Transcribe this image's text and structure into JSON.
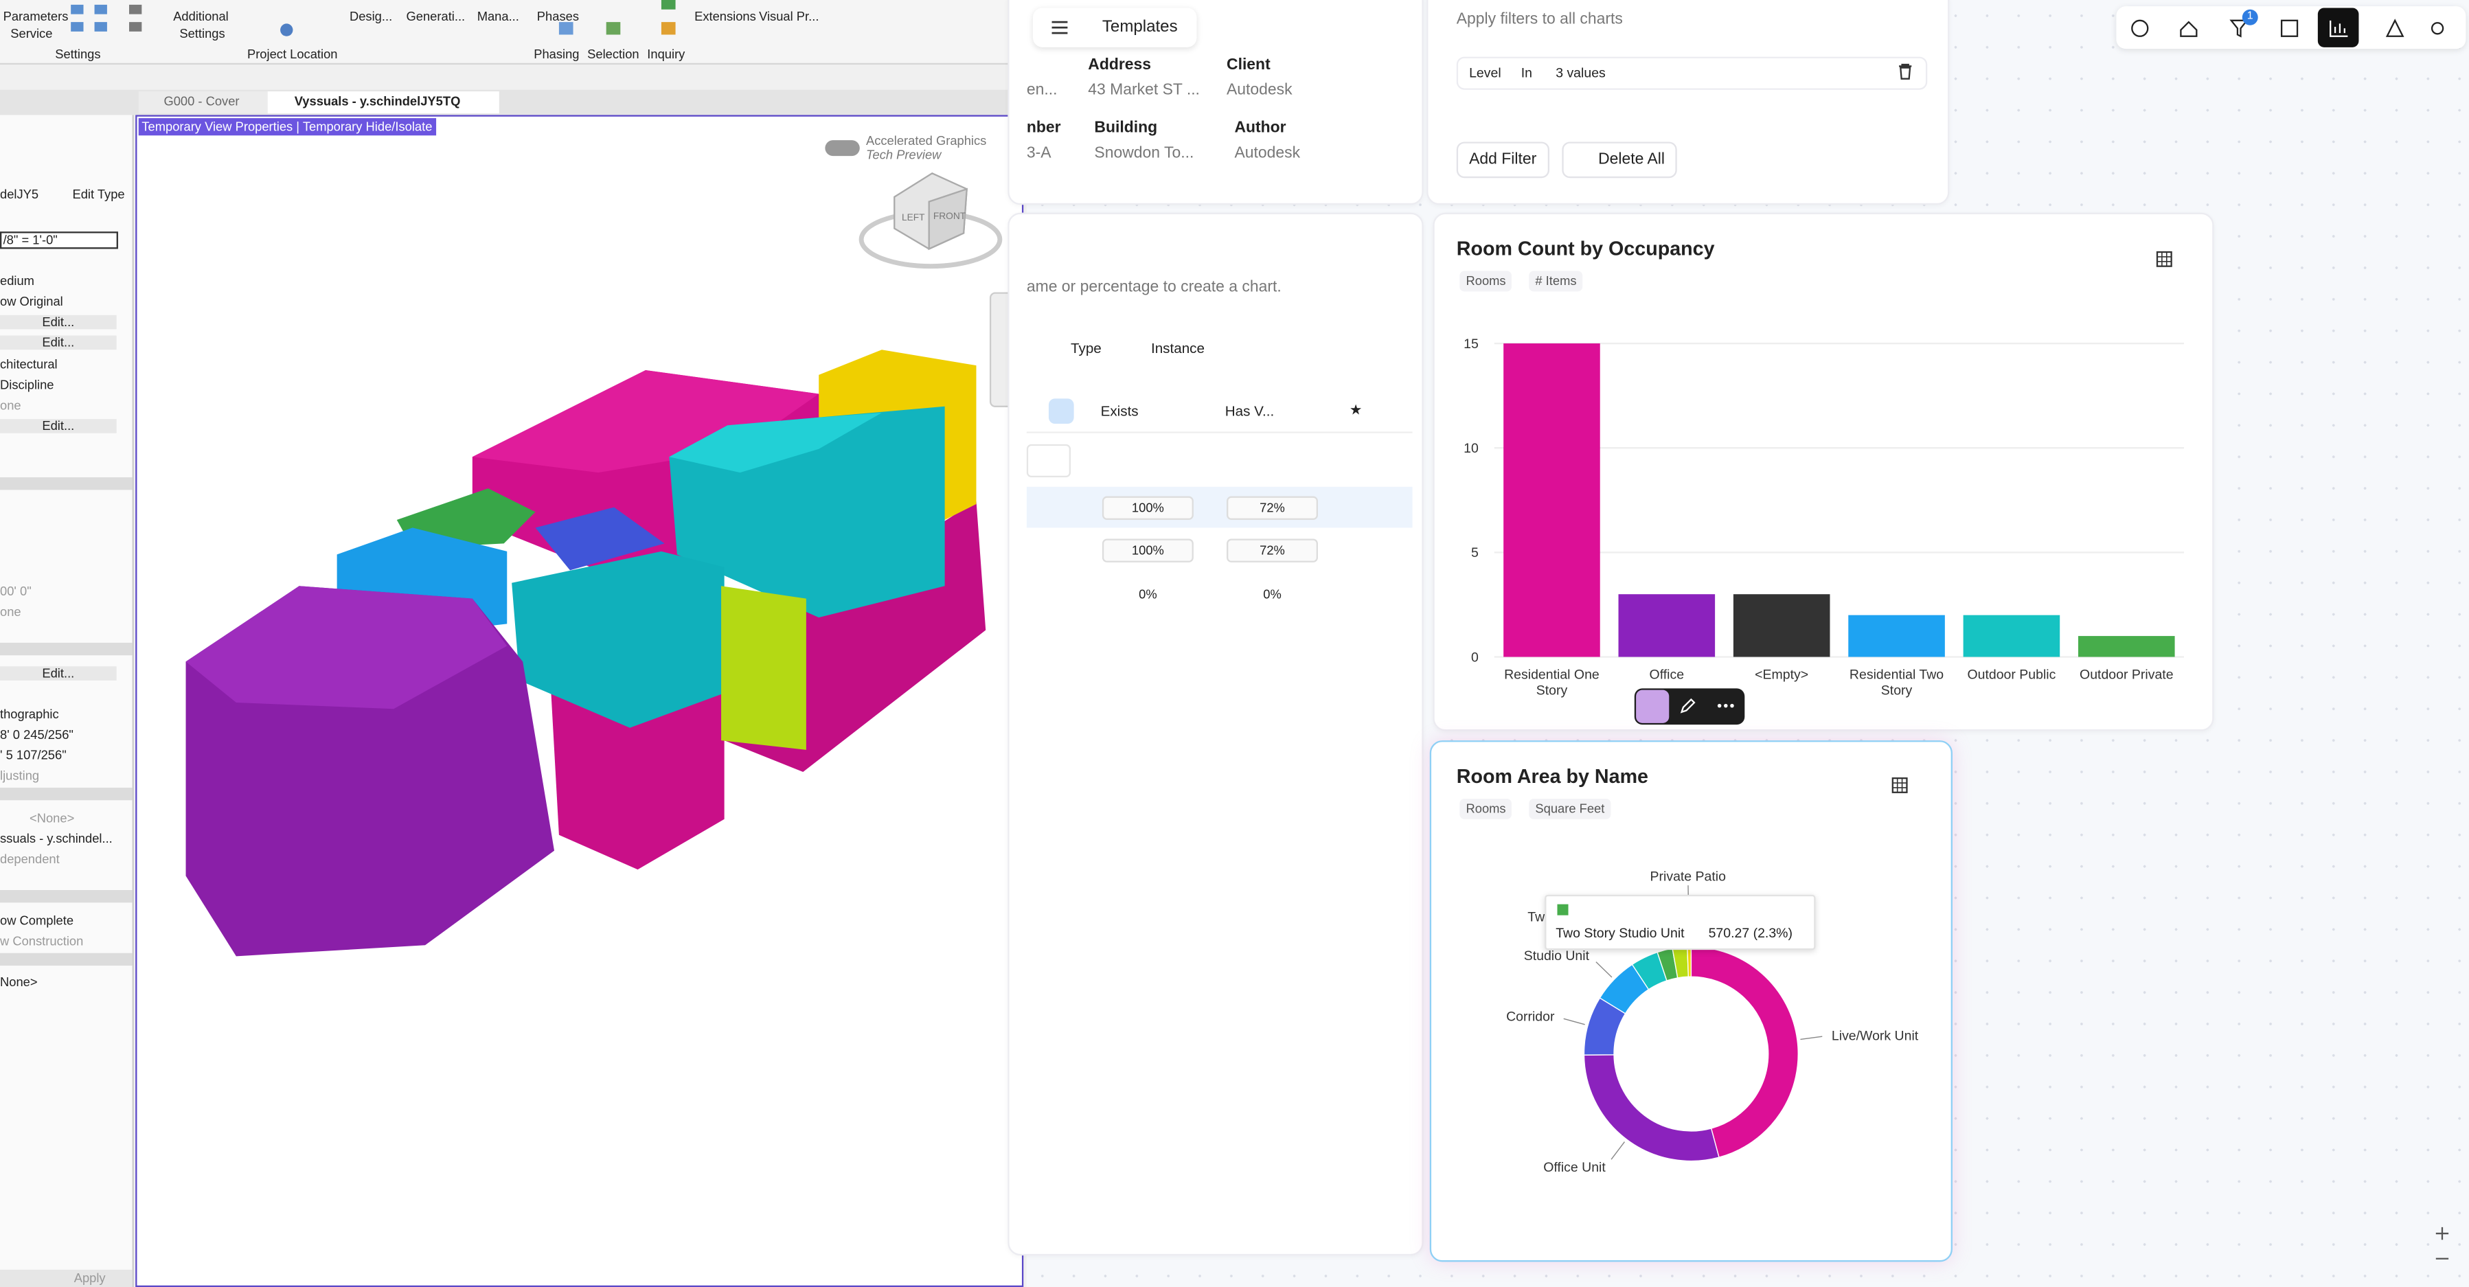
{
  "revit": {
    "ribbon_labels": [
      "Parameters",
      "Service",
      "Additional",
      "Settings",
      "Desig...",
      "Generati...",
      "Mana...",
      "Phases",
      "Extensions",
      "Visual Pr...",
      "Settings",
      "Project Location",
      "Phasing",
      "Selection",
      "Inquiry"
    ],
    "tabs": [
      "G000 - Cover",
      "Vyssuals - y.schindelJY5TQ"
    ],
    "properties": {
      "type_selector": "delJY5",
      "edit_type": "Edit Type",
      "rows": [
        "/8\" = 1'-0\"",
        "edium",
        "ow Original",
        "Edit...",
        "Edit...",
        "chitectural",
        "Discipline",
        "one",
        "Edit...",
        "00' 0\"",
        "one",
        "Edit...",
        "thographic",
        "8'  0 245/256\"",
        "'  5 107/256\"",
        "ljusting",
        "<None>",
        "ssuals - y.schindel...",
        "dependent",
        "ow Complete",
        "w Construction",
        "None>"
      ],
      "apply": "Apply"
    },
    "view": {
      "banner": "Temporary View Properties | Temporary Hide/Isolate",
      "graphics_toggle": "Accelerated Graphics",
      "graphics_sub": "Tech Preview",
      "viewcube": [
        "LEFT",
        "FRONT"
      ]
    }
  },
  "app": {
    "menu_title": "Templates",
    "filter_badge": "1",
    "project_fields": [
      {
        "label": "Address",
        "value": "43 Market ST ..."
      },
      {
        "label": "Client",
        "value": "Autodesk"
      },
      {
        "label": "nber",
        "value": "3-A"
      },
      {
        "label": "Building",
        "value": "Snowdon To..."
      },
      {
        "label": "Author",
        "value": "Autodesk"
      }
    ],
    "project_partial": "en...",
    "filters": {
      "hint": "Apply filters to all charts",
      "field": "Level",
      "operator": "In",
      "values": "3 values",
      "add": "Add Filter",
      "delete": "Delete All"
    },
    "table": {
      "hint": "ame or percentage to create a chart.",
      "tabs": [
        "Type",
        "Instance"
      ],
      "headers": [
        "Exists",
        "Has V..."
      ],
      "rows": [
        [
          "100%",
          "72%"
        ],
        [
          "100%",
          "72%"
        ],
        [
          "0%",
          "0%"
        ]
      ]
    }
  },
  "chart_data": [
    {
      "type": "bar",
      "title": "Room Count by Occupancy",
      "tags": [
        "Rooms",
        "# Items"
      ],
      "categories": [
        "Residential One Story",
        "Office",
        "<Empty>",
        "Residential Two Story",
        "Outdoor Public",
        "Outdoor Private"
      ],
      "values": [
        15,
        3,
        3,
        2,
        2,
        1
      ],
      "colors": [
        "#dc0f96",
        "#8b22bd",
        "#333333",
        "#1ea3f2",
        "#16c3c2",
        "#47ad4b"
      ],
      "ylim": [
        0,
        15
      ],
      "yticks": [
        0,
        5,
        10,
        15
      ],
      "grid": true
    },
    {
      "type": "pie",
      "title": "Room Area by Name",
      "tags": [
        "Rooms",
        "Square Feet"
      ],
      "categories": [
        "Live/Work Unit",
        "Office Unit",
        "Corridor",
        "Studio Unit",
        null,
        "Two Story Studio Unit",
        null,
        "Private Patio"
      ],
      "values": [
        11300,
        7160,
        2200,
        1720,
        1030,
        570.27,
        550,
        140
      ],
      "colors": [
        "#dc0f96",
        "#8b22bd",
        "#4a5fe0",
        "#1ea3f2",
        "#16c3c2",
        "#47ad4b",
        "#b8dd16",
        "#f1d40a"
      ],
      "donut": true,
      "tooltip": "570.27 (2.3%)"
    }
  ]
}
